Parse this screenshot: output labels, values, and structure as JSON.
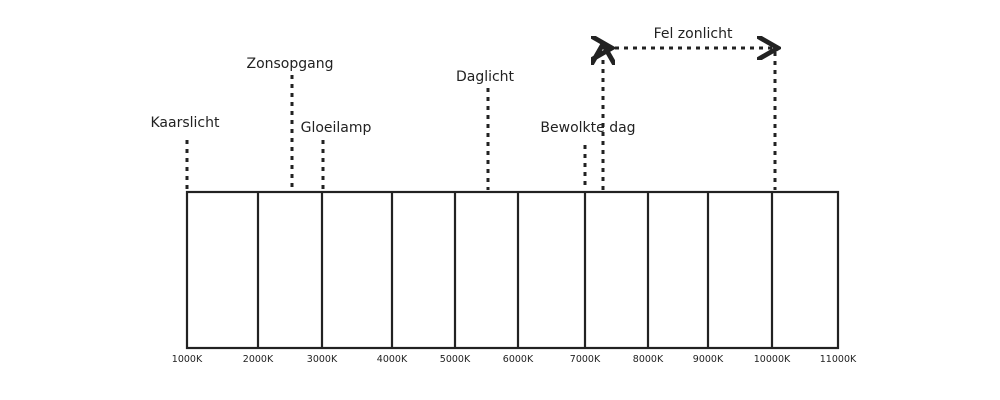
{
  "axis": {
    "ticks": [
      "1000K",
      "2000K",
      "3000K",
      "4000K",
      "5000K",
      "6000K",
      "7000K",
      "8000K",
      "9000K",
      "10000K",
      "11000K"
    ]
  },
  "annotations": [
    {
      "label": "Kaarslicht"
    },
    {
      "label": "Zonsopgang"
    },
    {
      "label": "Gloeilamp"
    },
    {
      "label": "Daglicht"
    },
    {
      "label": "Bewolkte dag"
    },
    {
      "label": "Fel zonlicht"
    }
  ]
}
